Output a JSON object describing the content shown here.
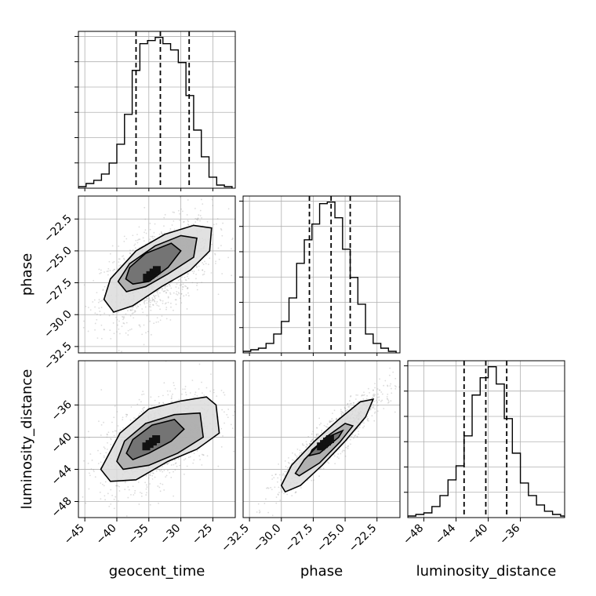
{
  "chart_data": {
    "type": "corner",
    "colors": {
      "ink": "#000000",
      "grid": "#b0b0b0",
      "scatter": "#9a9a9a"
    },
    "parameters": [
      {
        "name": "geocent_time",
        "range": [
          -46,
          -21.5
        ],
        "ticks": [
          -45,
          -40,
          -35,
          -30,
          -25
        ],
        "tick_labels": [
          "−45",
          "−40",
          "−35",
          "−30",
          "−25"
        ],
        "quantiles": [
          -37.0,
          -33.2,
          -28.7
        ]
      },
      {
        "name": "phase",
        "range": [
          -33.0,
          -20.7
        ],
        "ticks": [
          -32.5,
          -30.0,
          -27.5,
          -25.0,
          -22.5
        ],
        "tick_labels": [
          "−32.5",
          "−30.0",
          "−27.5",
          "−25.0",
          "−22.5"
        ],
        "quantiles": [
          -27.8,
          -26.1,
          -24.6
        ]
      },
      {
        "name": "luminosity_distance",
        "range": [
          -50,
          -30.5
        ],
        "ticks": [
          -48,
          -44,
          -40,
          -36
        ],
        "tick_labels": [
          "−48",
          "−44",
          "−40",
          "−36"
        ],
        "quantiles": [
          -43.0,
          -40.3,
          -37.7
        ]
      }
    ],
    "histograms": [
      {
        "parameter": "geocent_time",
        "edges": [
          -46.0,
          -44.8,
          -43.6,
          -42.4,
          -41.2,
          -40.0,
          -38.8,
          -37.6,
          -36.4,
          -35.2,
          -34.0,
          -32.8,
          -31.6,
          -30.4,
          -29.2,
          -28.0,
          -26.8,
          -25.6,
          -24.4,
          -23.2,
          -22.0
        ],
        "counts": [
          1,
          3,
          5,
          9,
          16,
          28,
          47,
          75,
          92,
          94,
          96,
          92,
          88,
          80,
          59,
          37,
          20,
          7,
          2,
          1
        ]
      },
      {
        "parameter": "phase",
        "edges": [
          -33.0,
          -32.4,
          -31.8,
          -31.2,
          -30.6,
          -30.0,
          -29.4,
          -28.8,
          -28.2,
          -27.6,
          -27.0,
          -26.4,
          -25.8,
          -25.2,
          -24.6,
          -24.0,
          -23.4,
          -22.8,
          -22.2,
          -21.6,
          -21.0
        ],
        "counts": [
          1,
          2,
          3,
          6,
          12,
          20,
          35,
          57,
          72,
          82,
          95,
          96,
          86,
          66,
          48,
          31,
          12,
          6,
          3,
          1
        ]
      },
      {
        "parameter": "luminosity_distance",
        "edges": [
          -50.0,
          -49.0,
          -48.0,
          -47.0,
          -46.0,
          -45.0,
          -44.0,
          -43.0,
          -42.0,
          -41.0,
          -40.0,
          -39.0,
          -38.0,
          -37.0,
          -36.0,
          -35.0,
          -34.0,
          -33.0,
          -32.0,
          -31.0,
          -30.5
        ],
        "counts": [
          1,
          2,
          3,
          7,
          14,
          24,
          33,
          52,
          78,
          89,
          96,
          85,
          63,
          41,
          22,
          14,
          8,
          4,
          2,
          1
        ]
      }
    ],
    "pairs": [
      {
        "x": "geocent_time",
        "y": "phase",
        "mean": [
          -33.8,
          -26.6
        ],
        "std": [
          4.3,
          2.0
        ],
        "correlation": 0.55,
        "contours": [
          [
            [
              -40.5,
              -29.8
            ],
            [
              -37.5,
              -29.3
            ],
            [
              -33.0,
              -27.8
            ],
            [
              -28.5,
              -26.5
            ],
            [
              -25.5,
              -25.0
            ],
            [
              -25.2,
              -23.2
            ],
            [
              -28.0,
              -23.0
            ],
            [
              -32.5,
              -23.7
            ],
            [
              -37.0,
              -25.0
            ],
            [
              -41.0,
              -27.2
            ],
            [
              -42.0,
              -28.8
            ]
          ],
          [
            [
              -38.5,
              -28.2
            ],
            [
              -35.5,
              -27.8
            ],
            [
              -32.0,
              -26.8
            ],
            [
              -28.0,
              -25.5
            ],
            [
              -27.5,
              -24.0
            ],
            [
              -30.0,
              -23.8
            ],
            [
              -34.0,
              -24.6
            ],
            [
              -38.0,
              -26.0
            ],
            [
              -39.8,
              -27.4
            ]
          ],
          [
            [
              -37.5,
              -27.6
            ],
            [
              -35.0,
              -27.4
            ],
            [
              -32.0,
              -26.3
            ],
            [
              -30.0,
              -25.0
            ],
            [
              -31.5,
              -24.4
            ],
            [
              -35.5,
              -25.2
            ],
            [
              -38.0,
              -26.3
            ],
            [
              -38.6,
              -27.2
            ]
          ]
        ]
      },
      {
        "x": "geocent_time",
        "y": "luminosity_distance",
        "mean": [
          -33.9,
          -40.4
        ],
        "std": [
          4.3,
          3.0
        ],
        "correlation": 0.5,
        "contours": [
          [
            [
              -41.0,
              -45.5
            ],
            [
              -37.0,
              -45.3
            ],
            [
              -32.0,
              -43.0
            ],
            [
              -27.5,
              -41.5
            ],
            [
              -24.0,
              -39.5
            ],
            [
              -24.5,
              -36.0
            ],
            [
              -26.0,
              -35.0
            ],
            [
              -30.0,
              -35.5
            ],
            [
              -35.0,
              -36.5
            ],
            [
              -39.5,
              -39.5
            ],
            [
              -42.5,
              -44.0
            ]
          ],
          [
            [
              -39.0,
              -44.0
            ],
            [
              -35.0,
              -43.5
            ],
            [
              -30.5,
              -42.0
            ],
            [
              -26.5,
              -40.0
            ],
            [
              -27.0,
              -37.0
            ],
            [
              -31.0,
              -37.2
            ],
            [
              -35.5,
              -38.3
            ],
            [
              -38.8,
              -40.5
            ],
            [
              -40.0,
              -43.0
            ]
          ],
          [
            [
              -37.5,
              -42.8
            ],
            [
              -35.0,
              -42.0
            ],
            [
              -31.5,
              -40.5
            ],
            [
              -29.5,
              -39.0
            ],
            [
              -31.0,
              -37.8
            ],
            [
              -34.5,
              -38.5
            ],
            [
              -37.5,
              -40.3
            ],
            [
              -38.5,
              -42.0
            ]
          ]
        ]
      },
      {
        "x": "phase",
        "y": "luminosity_distance",
        "mean": [
          -26.2,
          -40.4
        ],
        "std": [
          2.0,
          3.0
        ],
        "correlation": 0.92,
        "contours": [
          [
            [
              -29.7,
              -46.8
            ],
            [
              -28.5,
              -46.0
            ],
            [
              -26.8,
              -43.5
            ],
            [
              -25.0,
              -40.5
            ],
            [
              -23.4,
              -37.5
            ],
            [
              -22.8,
              -35.3
            ],
            [
              -23.8,
              -35.6
            ],
            [
              -25.5,
              -37.8
            ],
            [
              -27.4,
              -40.5
            ],
            [
              -29.2,
              -43.5
            ],
            [
              -30.0,
              -46.0
            ]
          ],
          [
            [
              -28.6,
              -44.8
            ],
            [
              -27.0,
              -43.2
            ],
            [
              -25.4,
              -40.6
            ],
            [
              -24.4,
              -38.6
            ],
            [
              -25.0,
              -38.3
            ],
            [
              -26.5,
              -40.0
            ],
            [
              -28.2,
              -42.8
            ],
            [
              -28.9,
              -44.5
            ]
          ],
          [
            [
              -27.8,
              -42.3
            ],
            [
              -27.0,
              -42.0
            ],
            [
              -25.5,
              -40.0
            ],
            [
              -25.2,
              -39.2
            ],
            [
              -26.4,
              -40.0
            ],
            [
              -27.6,
              -41.6
            ]
          ]
        ]
      }
    ]
  }
}
